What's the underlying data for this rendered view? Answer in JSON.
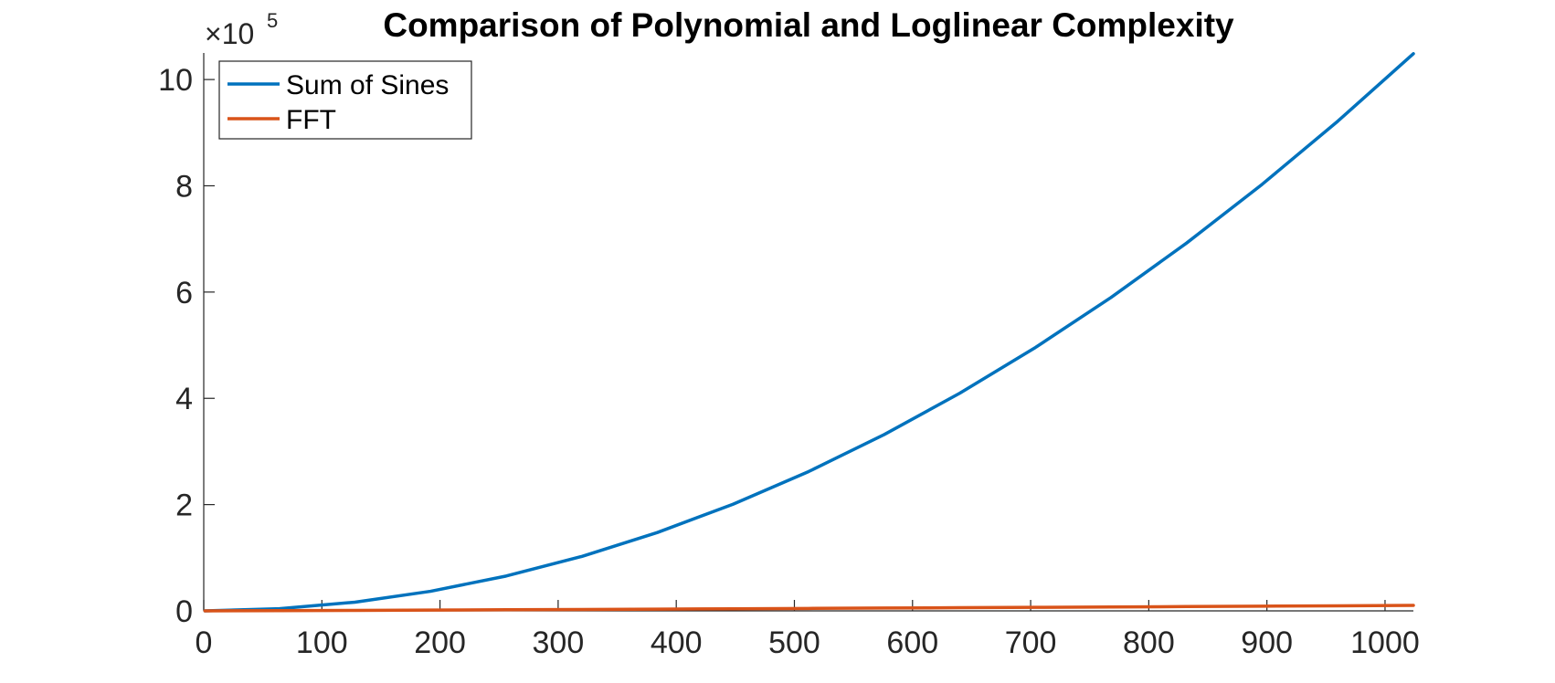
{
  "chart_data": {
    "type": "line",
    "title": "Comparison of Polynomial and Loglinear Complexity",
    "xlabel": "",
    "ylabel": "",
    "xlim": [
      0,
      1024
    ],
    "ylim": [
      0,
      1050000
    ],
    "x_ticks": [
      0,
      100,
      200,
      300,
      400,
      500,
      600,
      700,
      800,
      900,
      1000
    ],
    "x_tick_labels": [
      "0",
      "100",
      "200",
      "300",
      "400",
      "500",
      "600",
      "700",
      "800",
      "900",
      "1000"
    ],
    "y_ticks": [
      0,
      200000,
      400000,
      600000,
      800000,
      1000000
    ],
    "y_tick_labels": [
      "0",
      "2",
      "4",
      "6",
      "8",
      "10"
    ],
    "y_exponent_label": {
      "prefix": "×10",
      "power": "5"
    },
    "grid": false,
    "legend_position": "top-left",
    "x": [
      1,
      64,
      128,
      192,
      256,
      320,
      384,
      448,
      512,
      576,
      640,
      704,
      768,
      832,
      896,
      960,
      1024
    ],
    "series": [
      {
        "name": "Sum of Sines",
        "color": "#0072BD",
        "values": [
          1,
          4096,
          16384,
          36864,
          65536,
          102400,
          147456,
          200704,
          262144,
          331776,
          409600,
          495616,
          589824,
          692224,
          802816,
          921600,
          1048576
        ]
      },
      {
        "name": "FFT",
        "color": "#D95319",
        "values": [
          0,
          384,
          896,
          1456,
          2048,
          2663,
          3297,
          3949,
          4608,
          5280,
          5962,
          6656,
          7356,
          8064,
          8780,
          9499,
          10240
        ]
      }
    ]
  }
}
